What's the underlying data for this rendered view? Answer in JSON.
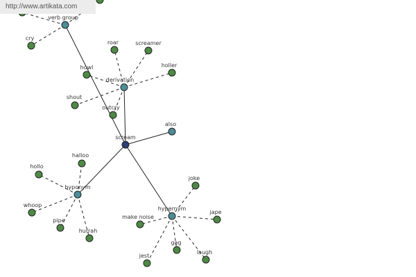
{
  "watermark": "http://www.artikata.com",
  "colors": {
    "center": "#2e3d74",
    "category": "#4d8d99",
    "word": "#4e8a45",
    "edge": "#222222"
  },
  "graph": {
    "center": "scream",
    "nodes": [
      {
        "id": "scream",
        "label": "scream",
        "kind": "center"
      },
      {
        "id": "verb_group",
        "label": "verb group",
        "kind": "category"
      },
      {
        "id": "derivation",
        "label": "derivation",
        "kind": "category"
      },
      {
        "id": "also",
        "label": "also",
        "kind": "category"
      },
      {
        "id": "hyponym",
        "label": "hyponym",
        "kind": "category"
      },
      {
        "id": "hypernym",
        "label": "hypernym",
        "kind": "category"
      },
      {
        "id": "vg_top",
        "label": "",
        "kind": "word"
      },
      {
        "id": "vg_left",
        "label": "",
        "kind": "word"
      },
      {
        "id": "cry",
        "label": "cry",
        "kind": "word"
      },
      {
        "id": "roar",
        "label": "roar",
        "kind": "word"
      },
      {
        "id": "screamer",
        "label": "screamer",
        "kind": "word"
      },
      {
        "id": "howl",
        "label": "howl",
        "kind": "word"
      },
      {
        "id": "holler",
        "label": "holler",
        "kind": "word"
      },
      {
        "id": "shout",
        "label": "shout",
        "kind": "word"
      },
      {
        "id": "outcry",
        "label": "outcry",
        "kind": "word"
      },
      {
        "id": "halloo",
        "label": "halloo",
        "kind": "word"
      },
      {
        "id": "hollo",
        "label": "hollo",
        "kind": "word"
      },
      {
        "id": "whoop",
        "label": "whoop",
        "kind": "word"
      },
      {
        "id": "pipe",
        "label": "pipe",
        "kind": "word"
      },
      {
        "id": "hurrah",
        "label": "hurrah",
        "kind": "word"
      },
      {
        "id": "joke",
        "label": "joke",
        "kind": "word"
      },
      {
        "id": "make_noise",
        "label": "make noise",
        "kind": "word"
      },
      {
        "id": "jape",
        "label": "jape",
        "kind": "word"
      },
      {
        "id": "jest",
        "label": "jest",
        "kind": "word"
      },
      {
        "id": "gag",
        "label": "gag",
        "kind": "word"
      },
      {
        "id": "laugh",
        "label": "laugh",
        "kind": "word"
      }
    ],
    "edges": [
      {
        "from": "scream",
        "to": "verb_group",
        "style": "solid"
      },
      {
        "from": "scream",
        "to": "derivation",
        "style": "solid"
      },
      {
        "from": "scream",
        "to": "also",
        "style": "solid"
      },
      {
        "from": "scream",
        "to": "hyponym",
        "style": "solid"
      },
      {
        "from": "scream",
        "to": "hypernym",
        "style": "solid"
      },
      {
        "from": "verb_group",
        "to": "vg_top",
        "style": "dashed"
      },
      {
        "from": "verb_group",
        "to": "vg_left",
        "style": "dashed"
      },
      {
        "from": "verb_group",
        "to": "cry",
        "style": "dashed"
      },
      {
        "from": "derivation",
        "to": "roar",
        "style": "dashed"
      },
      {
        "from": "derivation",
        "to": "screamer",
        "style": "dashed"
      },
      {
        "from": "derivation",
        "to": "howl",
        "style": "dashed"
      },
      {
        "from": "derivation",
        "to": "holler",
        "style": "dashed"
      },
      {
        "from": "derivation",
        "to": "shout",
        "style": "dashed"
      },
      {
        "from": "derivation",
        "to": "outcry",
        "style": "dashed"
      },
      {
        "from": "hyponym",
        "to": "halloo",
        "style": "dashed"
      },
      {
        "from": "hyponym",
        "to": "hollo",
        "style": "dashed"
      },
      {
        "from": "hyponym",
        "to": "whoop",
        "style": "dashed"
      },
      {
        "from": "hyponym",
        "to": "pipe",
        "style": "dashed"
      },
      {
        "from": "hyponym",
        "to": "hurrah",
        "style": "dashed"
      },
      {
        "from": "hypernym",
        "to": "joke",
        "style": "dashed"
      },
      {
        "from": "hypernym",
        "to": "make_noise",
        "style": "dashed"
      },
      {
        "from": "hypernym",
        "to": "jape",
        "style": "dashed"
      },
      {
        "from": "hypernym",
        "to": "jest",
        "style": "dashed"
      },
      {
        "from": "hypernym",
        "to": "gag",
        "style": "dashed"
      },
      {
        "from": "hypernym",
        "to": "laugh",
        "style": "dashed"
      }
    ]
  }
}
